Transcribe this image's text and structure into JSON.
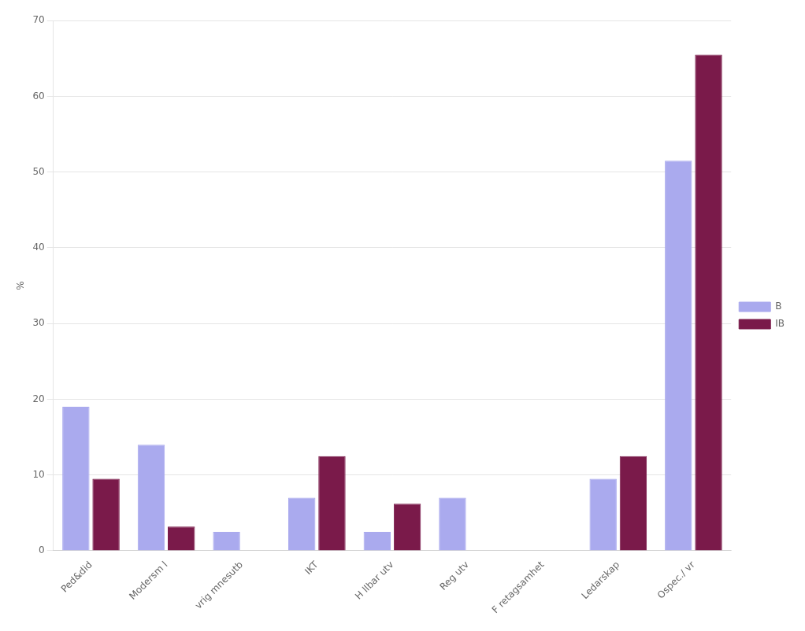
{
  "chart_data": {
    "type": "bar",
    "categories": [
      "Ped&did",
      "Modersm l",
      "vrig mnesutb",
      "IKT",
      "H llbar utv",
      "Reg utv",
      "F retagsamhet",
      "Ledarskap",
      "Ospec./ vr"
    ],
    "series": [
      {
        "name": "B",
        "color": "#aaaaee",
        "values": [
          19,
          14,
          2.5,
          7,
          2.5,
          7,
          0,
          9.5,
          51.5
        ]
      },
      {
        "name": "IB",
        "color": "#7a1a4a",
        "values": [
          9.5,
          3.2,
          0,
          12.5,
          6.2,
          0,
          0,
          12.5,
          65.5
        ]
      }
    ],
    "ylabel": "%",
    "ylim": [
      0,
      70
    ],
    "yticks": [
      0,
      10,
      20,
      30,
      40,
      50,
      60,
      70
    ],
    "grid": true,
    "legend": "right"
  }
}
